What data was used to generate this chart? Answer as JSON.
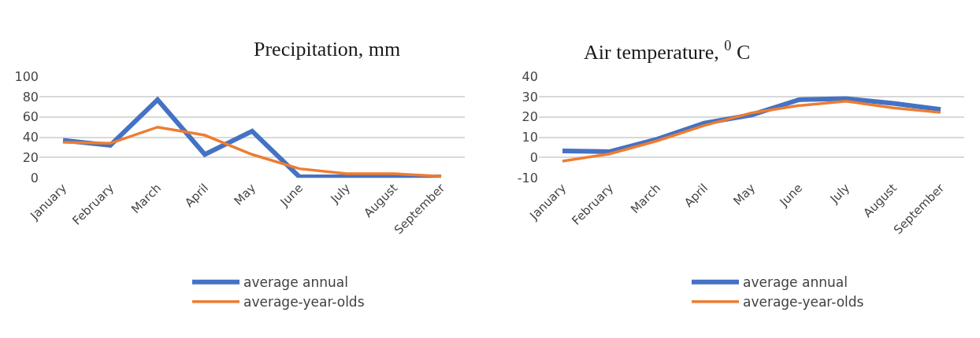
{
  "chart_data": [
    {
      "type": "line",
      "title": "Precipitation, mm",
      "categories": [
        "January",
        "February",
        "March",
        "April",
        "May",
        "June",
        "July",
        "August",
        "September"
      ],
      "series": [
        {
          "name": "average annual",
          "color": "#4472c4",
          "values": [
            37,
            32,
            77,
            23,
            46,
            1,
            1,
            1,
            1
          ]
        },
        {
          "name": "average-year-olds",
          "color": "#ed7d31",
          "values": [
            35,
            34,
            50,
            42,
            23,
            9,
            4,
            4,
            1.5
          ]
        }
      ],
      "ylim": [
        0,
        100
      ],
      "yticks": [
        0,
        20,
        40,
        60,
        80,
        100
      ],
      "grid": "y",
      "legend": "bottom",
      "marker": "none",
      "line_style": "solid"
    },
    {
      "type": "line",
      "title": "Air temperature, $^{0}$ C",
      "categories": [
        "January",
        "February",
        "March",
        "April",
        "May",
        "June",
        "July",
        "August",
        "September"
      ],
      "series": [
        {
          "name": "average annual",
          "color": "#4472c4",
          "values": [
            3.3,
            2.9,
            9,
            17,
            21,
            28.5,
            29,
            26.7,
            23.7
          ]
        },
        {
          "name": "average-year-olds",
          "color": "#ed7d31",
          "values": [
            -1.8,
            1.8,
            8.2,
            15.8,
            22,
            25.6,
            27.8,
            24.5,
            22.2
          ]
        }
      ],
      "ylim": [
        -10,
        40
      ],
      "yticks": [
        -10,
        0,
        10,
        20,
        30,
        40
      ],
      "grid": "y",
      "legend": "bottom",
      "marker": "none",
      "line_style": "solid"
    }
  ]
}
